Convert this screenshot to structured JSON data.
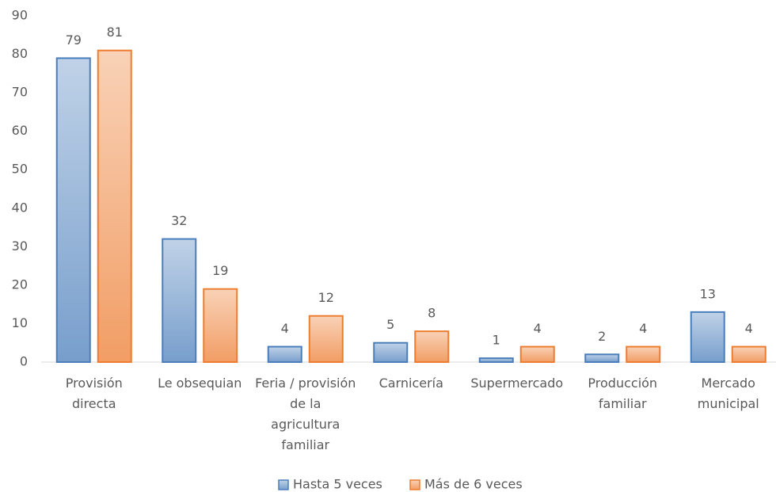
{
  "chart_data": {
    "type": "bar",
    "categories": [
      "Provisión directa",
      "Le obsequian",
      "Feria / provisión de la agricultura familiar",
      "Carnicería",
      "Supermercado",
      "Producción familiar",
      "Mercado municipal"
    ],
    "series": [
      {
        "name": "Hasta 5 veces",
        "color": "#4a7ebb",
        "values": [
          79,
          32,
          4,
          5,
          1,
          2,
          13
        ]
      },
      {
        "name": "Más de 6 veces",
        "color": "#ed7d31",
        "values": [
          81,
          19,
          12,
          8,
          4,
          4,
          4
        ]
      }
    ],
    "ylim": [
      0,
      90
    ],
    "yticks": [
      0,
      10,
      20,
      30,
      40,
      50,
      60,
      70,
      80,
      90
    ],
    "grid": false,
    "legend": "bottom"
  }
}
